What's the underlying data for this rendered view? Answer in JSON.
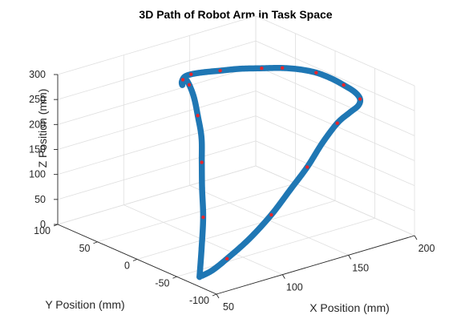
{
  "chart_data": {
    "type": "line3d",
    "title": "3D Path of Robot Arm in Task Space",
    "xlabel": "X Position (mm)",
    "ylabel": "Y Position (mm)",
    "zlabel": "Z Position (mm)",
    "xlim": [
      50,
      200
    ],
    "ylim": [
      -100,
      100
    ],
    "zlim": [
      0,
      300
    ],
    "xticks": [
      50,
      100,
      150,
      200
    ],
    "yticks": [
      -100,
      -50,
      0,
      50,
      100
    ],
    "zticks": [
      0,
      50,
      100,
      150,
      200,
      250,
      300
    ],
    "grid": true,
    "view": "default 3D (az -37.5, el 30)",
    "series": [
      {
        "name": "path",
        "style": "thick blue line",
        "color": "#1f77b4",
        "points": [
          [
            60,
            -62,
            0
          ],
          [
            70,
            -48,
            40
          ],
          [
            82,
            -30,
            80
          ],
          [
            92,
            -12,
            118
          ],
          [
            102,
            5,
            150
          ],
          [
            112,
            22,
            180
          ],
          [
            120,
            40,
            205
          ],
          [
            128,
            58,
            222
          ],
          [
            134,
            74,
            232
          ],
          [
            138,
            86,
            233
          ],
          [
            140,
            92,
            225
          ],
          [
            142,
            96,
            210
          ],
          [
            141,
            95,
            218
          ],
          [
            140,
            90,
            232
          ],
          [
            139,
            80,
            245
          ],
          [
            140,
            66,
            258
          ],
          [
            143,
            50,
            270
          ],
          [
            148,
            34,
            281
          ],
          [
            154,
            16,
            290
          ],
          [
            160,
            0,
            297
          ],
          [
            165,
            -14,
            300
          ],
          [
            170,
            -26,
            298
          ],
          [
            175,
            -36,
            290
          ],
          [
            180,
            -44,
            278
          ],
          [
            186,
            -48,
            262
          ],
          [
            190,
            -48,
            245
          ],
          [
            191,
            -44,
            228
          ],
          [
            188,
            -38,
            212
          ],
          [
            180,
            -36,
            196
          ],
          [
            165,
            -42,
            172
          ],
          [
            150,
            -48,
            140
          ],
          [
            135,
            -52,
            110
          ],
          [
            118,
            -56,
            75
          ],
          [
            100,
            -58,
            42
          ],
          [
            82,
            -60,
            18
          ],
          [
            70,
            -62,
            6
          ],
          [
            62,
            -62,
            1
          ]
        ]
      },
      {
        "name": "waypoints",
        "style": "red dots",
        "color": "#e8242a",
        "points": [
          [
            82,
            -30,
            80
          ],
          [
            102,
            5,
            150
          ],
          [
            120,
            40,
            205
          ],
          [
            134,
            74,
            232
          ],
          [
            140,
            92,
            225
          ],
          [
            139,
            80,
            245
          ],
          [
            143,
            50,
            270
          ],
          [
            154,
            16,
            290
          ],
          [
            160,
            0,
            297
          ],
          [
            170,
            -26,
            298
          ],
          [
            180,
            -44,
            278
          ],
          [
            190,
            -48,
            245
          ],
          [
            180,
            -36,
            196
          ],
          [
            150,
            -48,
            140
          ],
          [
            118,
            -56,
            75
          ],
          [
            82,
            -60,
            18
          ]
        ]
      }
    ]
  }
}
